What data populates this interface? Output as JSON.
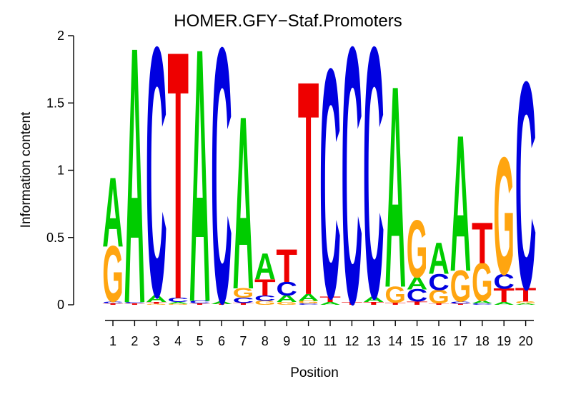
{
  "chart_data": {
    "type": "sequence_logo",
    "title": "HOMER.GFY−Staf.Promoters",
    "xlabel": "Position",
    "ylabel": "Information content",
    "ylim": [
      0,
      2
    ],
    "yticks": [
      0,
      0.5,
      1,
      1.5,
      2
    ],
    "ytick_labels": [
      "0",
      "0.5",
      "1",
      "1.5",
      "2"
    ],
    "xtick_labels": [
      "1",
      "2",
      "3",
      "4",
      "5",
      "6",
      "7",
      "8",
      "9",
      "10",
      "11",
      "12",
      "13",
      "14",
      "15",
      "16",
      "17",
      "18",
      "19",
      "20"
    ],
    "legend": "none",
    "grid": false,
    "base_colors": {
      "A": "#00CC00",
      "C": "#0000E0",
      "G": "#FFA510",
      "T": "#EE0000"
    },
    "consensus": "AACTACAATTCCCAGAATGC",
    "stacks_bottom_to_top": [
      {
        "position": 1,
        "letters": [
          {
            "base": "T",
            "bits": 0.01
          },
          {
            "base": "C",
            "bits": 0.013
          },
          {
            "base": "G",
            "bits": 0.41
          },
          {
            "base": "A",
            "bits": 0.51
          }
        ]
      },
      {
        "position": 2,
        "letters": [
          {
            "base": "T",
            "bits": 0.01
          },
          {
            "base": "C",
            "bits": 0.01
          },
          {
            "base": "A",
            "bits": 1.88
          }
        ]
      },
      {
        "position": 3,
        "letters": [
          {
            "base": "G",
            "bits": 0.008
          },
          {
            "base": "T",
            "bits": 0.012
          },
          {
            "base": "A",
            "bits": 0.05
          },
          {
            "base": "C",
            "bits": 1.83
          }
        ]
      },
      {
        "position": 4,
        "letters": [
          {
            "base": "G",
            "bits": 0.008
          },
          {
            "base": "A",
            "bits": 0.012
          },
          {
            "base": "C",
            "bits": 0.03
          },
          {
            "base": "T",
            "bits": 1.82
          }
        ]
      },
      {
        "position": 5,
        "letters": [
          {
            "base": "T",
            "bits": 0.01
          },
          {
            "base": "C",
            "bits": 0.02
          },
          {
            "base": "A",
            "bits": 1.86
          }
        ]
      },
      {
        "position": 6,
        "letters": [
          {
            "base": "T",
            "bits": 0.005
          },
          {
            "base": "A",
            "bits": 0.02
          },
          {
            "base": "C",
            "bits": 1.87
          }
        ]
      },
      {
        "position": 7,
        "letters": [
          {
            "base": "T",
            "bits": 0.012
          },
          {
            "base": "C",
            "bits": 0.04
          },
          {
            "base": "G",
            "bits": 0.07
          },
          {
            "base": "A",
            "bits": 1.27
          }
        ]
      },
      {
        "position": 8,
        "letters": [
          {
            "base": "G",
            "bits": 0.03
          },
          {
            "base": "C",
            "bits": 0.04
          },
          {
            "base": "T",
            "bits": 0.12
          },
          {
            "base": "A",
            "bits": 0.19
          }
        ]
      },
      {
        "position": 9,
        "letters": [
          {
            "base": "G",
            "bits": 0.02
          },
          {
            "base": "A",
            "bits": 0.05
          },
          {
            "base": "C",
            "bits": 0.1
          },
          {
            "base": "T",
            "bits": 0.24
          }
        ]
      },
      {
        "position": 10,
        "letters": [
          {
            "base": "C",
            "bits": 0.01
          },
          {
            "base": "G",
            "bits": 0.02
          },
          {
            "base": "A",
            "bits": 0.05
          },
          {
            "base": "T",
            "bits": 1.57
          }
        ]
      },
      {
        "position": 11,
        "letters": [
          {
            "base": "A",
            "bits": 0.02
          },
          {
            "base": "T",
            "bits": 0.04
          },
          {
            "base": "C",
            "bits": 1.68
          }
        ]
      },
      {
        "position": 12,
        "letters": [
          {
            "base": "T",
            "bits": 0.02
          },
          {
            "base": "C",
            "bits": 1.88
          }
        ]
      },
      {
        "position": 13,
        "letters": [
          {
            "base": "T",
            "bits": 0.02
          },
          {
            "base": "A",
            "bits": 0.04
          },
          {
            "base": "C",
            "bits": 1.84
          }
        ]
      },
      {
        "position": 14,
        "letters": [
          {
            "base": "T",
            "bits": 0.015
          },
          {
            "base": "G",
            "bits": 0.12
          },
          {
            "base": "A",
            "bits": 1.48
          }
        ]
      },
      {
        "position": 15,
        "letters": [
          {
            "base": "T",
            "bits": 0.025
          },
          {
            "base": "C",
            "bits": 0.09
          },
          {
            "base": "A",
            "bits": 0.09
          },
          {
            "base": "G",
            "bits": 0.42
          }
        ]
      },
      {
        "position": 16,
        "letters": [
          {
            "base": "T",
            "bits": 0.01
          },
          {
            "base": "G",
            "bits": 0.1
          },
          {
            "base": "C",
            "bits": 0.12
          },
          {
            "base": "A",
            "bits": 0.23
          }
        ]
      },
      {
        "position": 17,
        "letters": [
          {
            "base": "T",
            "bits": 0.008
          },
          {
            "base": "C",
            "bits": 0.015
          },
          {
            "base": "G",
            "bits": 0.23
          },
          {
            "base": "A",
            "bits": 1.0
          }
        ]
      },
      {
        "position": 18,
        "letters": [
          {
            "base": "C",
            "bits": 0.01
          },
          {
            "base": "A",
            "bits": 0.02
          },
          {
            "base": "G",
            "bits": 0.28
          },
          {
            "base": "T",
            "bits": 0.3
          }
        ]
      },
      {
        "position": 19,
        "letters": [
          {
            "base": "A",
            "bits": 0.02
          },
          {
            "base": "T",
            "bits": 0.1
          },
          {
            "base": "C",
            "bits": 0.11
          },
          {
            "base": "G",
            "bits": 0.86
          }
        ]
      },
      {
        "position": 20,
        "letters": [
          {
            "base": "A",
            "bits": 0.01
          },
          {
            "base": "G",
            "bits": 0.015
          },
          {
            "base": "T",
            "bits": 0.1
          },
          {
            "base": "C",
            "bits": 1.52
          }
        ]
      }
    ]
  }
}
